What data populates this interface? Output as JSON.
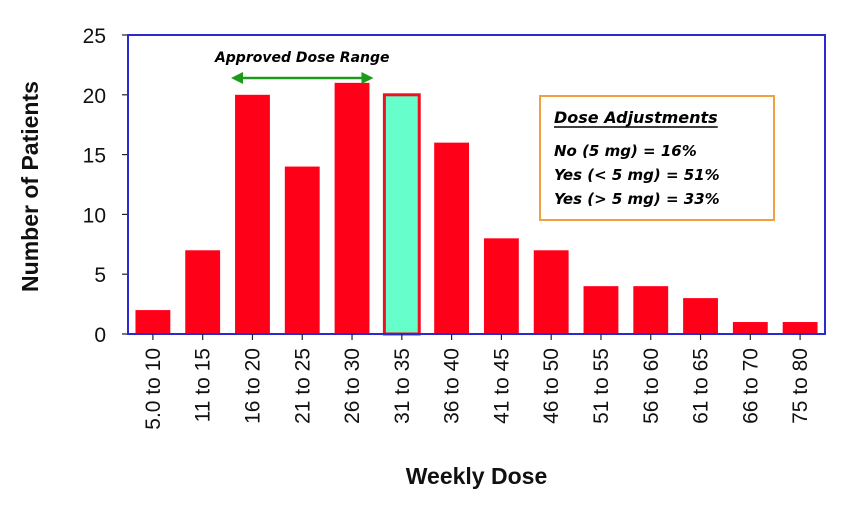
{
  "chart_data": {
    "type": "bar",
    "title": "",
    "xlabel": "Weekly Dose",
    "ylabel": "Number of Patients",
    "categories": [
      "5.0 to 10",
      "11 to 15",
      "16 to 20",
      "21 to 25",
      "26 to 30",
      "31 to 35",
      "36 to 40",
      "41 to 45",
      "46 to 50",
      "51 to 55",
      "56 to 60",
      "61 to 65",
      "66 to 70",
      "75 to 80"
    ],
    "values": [
      2,
      7,
      20,
      14,
      21,
      20,
      16,
      8,
      7,
      4,
      4,
      3,
      1,
      1
    ],
    "ylim": [
      0,
      25
    ],
    "yticks": [
      0,
      5,
      10,
      15,
      20,
      25
    ],
    "grid": false,
    "highlight_index": 5,
    "approved_range": {
      "label": "Approved Dose Range",
      "from_category": "16 to 20",
      "to_category": "26 to 30"
    },
    "annotation_box": {
      "title": "Dose Adjustments",
      "lines": [
        "No (5 mg) = 16%",
        "Yes (< 5 mg) = 51%",
        "Yes (> 5 mg) = 33%"
      ],
      "placement": "top-right"
    }
  },
  "colors": {
    "bar": "#ff0019",
    "highlight_fill": "#66ffcc",
    "highlight_border": "#ee1122",
    "axis": "#2a2ad0",
    "arrow": "#1c9a1c",
    "annotation_border": "#f0a040"
  }
}
